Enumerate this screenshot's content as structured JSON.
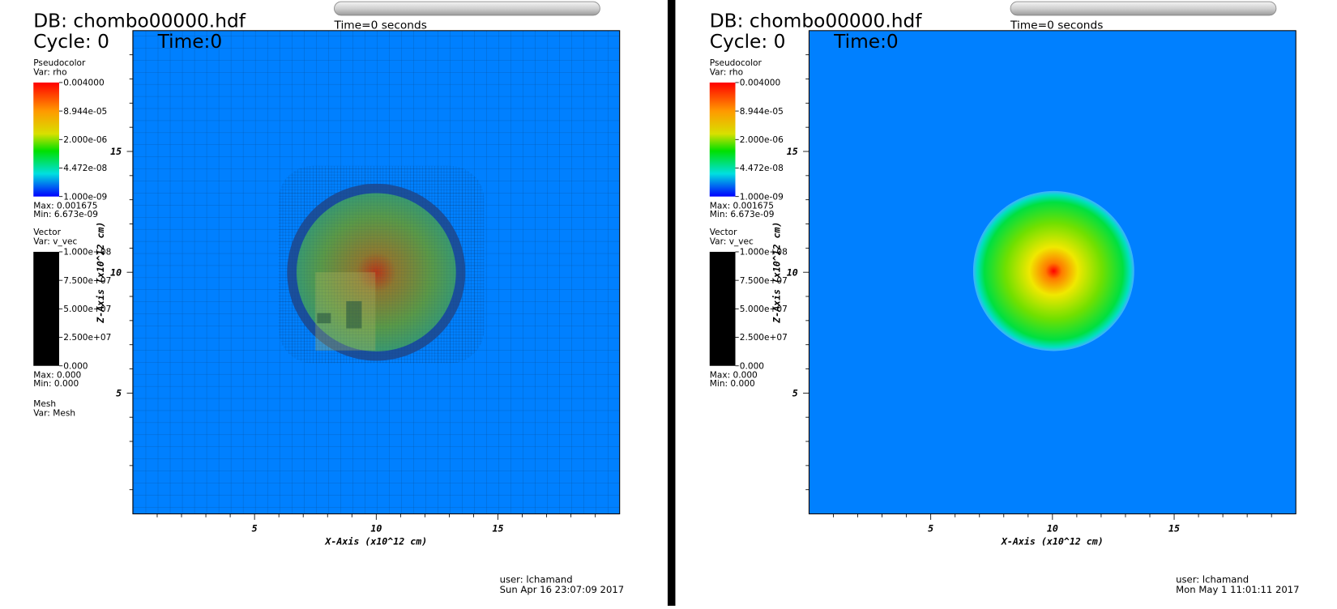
{
  "panels": [
    {
      "db": "DB: chombo00000.hdf",
      "cycle": "Cycle: 0",
      "time": "Time:0",
      "time_slider": "Time=0 seconds",
      "pseudocolor": {
        "title": "Pseudocolor",
        "var": "Var: rho",
        "labels": [
          "0.004000",
          "8.944e-05",
          "2.000e-06",
          "4.472e-08",
          "1.000e-09"
        ],
        "max": "Max: 0.001675",
        "min": "Min: 6.673e-09"
      },
      "vector": {
        "title": "Vector",
        "var": "Var: v_vec",
        "labels": [
          "1.000e+08",
          "7.500e+07",
          "5.000e+07",
          "2.500e+07",
          "0.000"
        ],
        "max": "Max: 0.000",
        "min": "Min: 0.000"
      },
      "mesh": {
        "title": "Mesh",
        "var": "Var: Mesh"
      },
      "x_axis": {
        "title": "X-Axis (x10^12 cm)",
        "ticks": [
          "5",
          "10",
          "15"
        ]
      },
      "y_axis": {
        "title": "Z-Axis (x10^12 cm)",
        "ticks": [
          "5",
          "10",
          "15"
        ]
      },
      "user": "user: lchamand",
      "date": "Sun Apr 16 23:07:09 2017"
    },
    {
      "db": "DB: chombo00000.hdf",
      "cycle": "Cycle: 0",
      "time": "Time:0",
      "time_slider": "Time=0 seconds",
      "pseudocolor": {
        "title": "Pseudocolor",
        "var": "Var: rho",
        "labels": [
          "0.004000",
          "8.944e-05",
          "2.000e-06",
          "4.472e-08",
          "1.000e-09"
        ],
        "max": "Max: 0.001675",
        "min": "Min: 6.673e-09"
      },
      "vector": {
        "title": "Vector",
        "var": "Var: v_vec",
        "labels": [
          "1.000e+08",
          "7.500e+07",
          "5.000e+07",
          "2.500e+07",
          "0.000"
        ],
        "max": "Max: 0.000",
        "min": "Min: 0.000"
      },
      "x_axis": {
        "title": "X-Axis (x10^12 cm)",
        "ticks": [
          "5",
          "10",
          "15"
        ]
      },
      "y_axis": {
        "title": "Z-Axis (x10^12 cm)",
        "ticks": [
          "5",
          "10",
          "15"
        ]
      },
      "user": "user: lchamand",
      "date": "Mon May  1 11:01:11 2017"
    }
  ]
}
